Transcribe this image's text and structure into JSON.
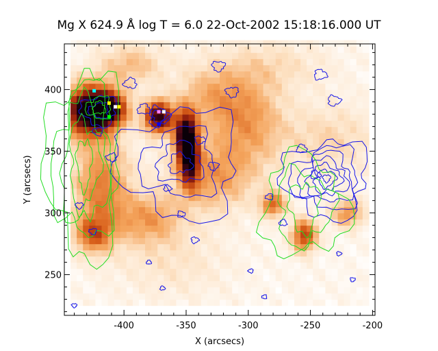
{
  "chart_data": {
    "type": "heatmap",
    "title": "Mg X  624.9 Å log T = 6.0 22-Oct-2002 15:18:16.000 UT",
    "xlabel": "X (arcsecs)",
    "ylabel": "Y (arcsecs)",
    "xlim": [
      -448,
      -198
    ],
    "ylim": [
      217,
      437
    ],
    "image_extent": {
      "x": [
        -443,
        -203
      ],
      "y": [
        225,
        437
      ]
    },
    "x_ticks": [
      -400,
      -350,
      -300,
      -250,
      -200
    ],
    "y_ticks": [
      250,
      300,
      350,
      400
    ],
    "x_tick_labels": [
      "-400",
      "-350",
      "-300",
      "-250",
      "-200"
    ],
    "y_tick_labels": [
      "250",
      "300",
      "350",
      "400"
    ],
    "colormap": [
      "#ffffff",
      "#fde3c6",
      "#f4a45c",
      "#d9601a",
      "#a3280c",
      "#4a0616",
      "#0a0008"
    ],
    "intensity_blobs": [
      {
        "x": -428,
        "y": 383,
        "sx": 14,
        "sy": 14,
        "amp": 1.0
      },
      {
        "x": -412,
        "y": 385,
        "sx": 10,
        "sy": 9,
        "amp": 0.7
      },
      {
        "x": -372,
        "y": 378,
        "sx": 8,
        "sy": 9,
        "amp": 0.85
      },
      {
        "x": -350,
        "y": 362,
        "sx": 6,
        "sy": 14,
        "amp": 1.0
      },
      {
        "x": -347,
        "y": 340,
        "sx": 5,
        "sy": 14,
        "amp": 0.6
      },
      {
        "x": -330,
        "y": 330,
        "sx": 24,
        "sy": 20,
        "amp": 0.3
      },
      {
        "x": -300,
        "y": 375,
        "sx": 20,
        "sy": 25,
        "amp": 0.28
      },
      {
        "x": -330,
        "y": 395,
        "sx": 20,
        "sy": 18,
        "amp": 0.22
      },
      {
        "x": -418,
        "y": 320,
        "sx": 16,
        "sy": 28,
        "amp": 0.38
      },
      {
        "x": -425,
        "y": 283,
        "sx": 10,
        "sy": 10,
        "amp": 0.38
      },
      {
        "x": -380,
        "y": 295,
        "sx": 18,
        "sy": 14,
        "amp": 0.28
      },
      {
        "x": -255,
        "y": 282,
        "sx": 7,
        "sy": 9,
        "amp": 0.55
      },
      {
        "x": -280,
        "y": 307,
        "sx": 7,
        "sy": 7,
        "amp": 0.42
      },
      {
        "x": -220,
        "y": 300,
        "sx": 9,
        "sy": 8,
        "amp": 0.33
      },
      {
        "x": -235,
        "y": 360,
        "sx": 28,
        "sy": 20,
        "amp": 0.15
      },
      {
        "x": -395,
        "y": 420,
        "sx": 18,
        "sy": 12,
        "amp": 0.22
      },
      {
        "x": -280,
        "y": 420,
        "sx": 30,
        "sy": 14,
        "amp": 0.12
      },
      {
        "x": -360,
        "y": 260,
        "sx": 30,
        "sy": 20,
        "amp": 0.1
      }
    ],
    "blue_contour_centers": [
      {
        "x": -237,
        "y": 328,
        "rx": [
          3,
          7,
          11,
          16,
          21,
          27,
          34
        ],
        "ry": [
          3,
          7,
          11,
          15,
          20,
          25,
          31
        ]
      },
      {
        "x": -355,
        "y": 340,
        "rx": [
          9,
          18,
          30,
          48
        ],
        "ry": [
          8,
          16,
          28,
          44
        ]
      },
      {
        "x": -420,
        "y": 383,
        "rx": [
          8,
          14
        ],
        "ry": [
          6,
          12
        ]
      },
      {
        "x": -372,
        "y": 378,
        "rx": [
          5,
          8
        ],
        "ry": [
          5,
          8
        ]
      }
    ],
    "green_contour_centers": [
      {
        "x": -432,
        "y": 340,
        "rx": [
          6,
          12,
          18,
          24,
          30
        ],
        "ry": [
          20,
          35,
          50,
          62,
          75
        ]
      },
      {
        "x": -420,
        "y": 385,
        "rx": [
          5,
          10
        ],
        "ry": [
          5,
          9
        ]
      },
      {
        "x": -255,
        "y": 305,
        "rx": [
          12,
          22,
          34
        ],
        "ry": [
          20,
          30,
          40
        ]
      }
    ],
    "saturated_pixels": [
      {
        "x": -424,
        "y": 399,
        "color": "#00ffff"
      },
      {
        "x": -412,
        "y": 389,
        "color": "#ffff00"
      },
      {
        "x": -407,
        "y": 386,
        "color": "#ffffff"
      },
      {
        "x": -404,
        "y": 386,
        "color": "#ffff00"
      },
      {
        "x": -412,
        "y": 378,
        "color": "#00ff00"
      },
      {
        "x": -372,
        "y": 382,
        "color": "#ff80ff"
      },
      {
        "x": -368,
        "y": 382,
        "color": "#ffffff"
      },
      {
        "x": -372,
        "y": 372,
        "color": "#0000ff"
      }
    ],
    "contour_colors": {
      "blue": "#1515e8",
      "green": "#22dd22"
    },
    "grid": false,
    "legend": "none"
  }
}
